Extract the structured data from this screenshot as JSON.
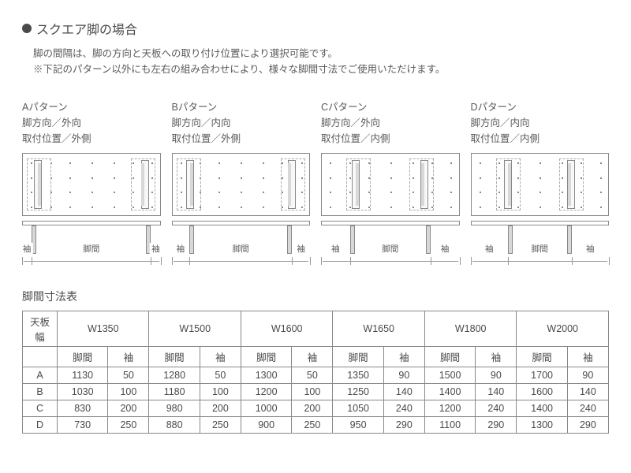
{
  "title": "スクエア脚の場合",
  "description_line1": "脚の間隔は、脚の方向と天板への取り付け位置により選択可能です。",
  "description_line2": "※下記のパターン以外にも左右の組み合わせにより、様々な脚間寸法でご使用いただけます。",
  "patterns": [
    {
      "name": "Aパターン",
      "direction": "脚方向／外向",
      "position": "取付位置／外側",
      "diagram": {
        "leg_offset_pct": 8,
        "bracket_outer": true,
        "leg_view_offset_pct": 7,
        "sleeve_range": [
          0,
          7
        ],
        "span_range": [
          7,
          93
        ]
      }
    },
    {
      "name": "Bパターン",
      "direction": "脚方向／内向",
      "position": "取付位置／外側",
      "diagram": {
        "leg_offset_pct": 10,
        "bracket_outer": true,
        "leg_view_offset_pct": 13,
        "sleeve_range": [
          0,
          13
        ],
        "span_range": [
          13,
          87
        ]
      }
    },
    {
      "name": "Cパターン",
      "direction": "脚方向／外向",
      "position": "取付位置／内側",
      "diagram": {
        "leg_offset_pct": 22,
        "bracket_outer": false,
        "leg_view_offset_pct": 21,
        "sleeve_range": [
          0,
          21
        ],
        "span_range": [
          21,
          79
        ]
      }
    },
    {
      "name": "Dパターン",
      "direction": "脚方向／内向",
      "position": "取付位置／内側",
      "diagram": {
        "leg_offset_pct": 24,
        "bracket_outer": false,
        "leg_view_offset_pct": 27,
        "sleeve_range": [
          0,
          27
        ],
        "span_range": [
          27,
          73
        ]
      }
    }
  ],
  "labels": {
    "span": "脚間",
    "sleeve": "袖",
    "row_head": "天板幅"
  },
  "table_title": "脚間寸法表",
  "widths": [
    "W1350",
    "W1500",
    "W1600",
    "W1650",
    "W1800",
    "W2000"
  ],
  "subcols": [
    "脚間",
    "袖"
  ],
  "rows": [
    {
      "label": "A",
      "vals": [
        [
          1130,
          50
        ],
        [
          1280,
          50
        ],
        [
          1300,
          50
        ],
        [
          1350,
          90
        ],
        [
          1500,
          90
        ],
        [
          1700,
          90
        ]
      ]
    },
    {
      "label": "B",
      "vals": [
        [
          1030,
          100
        ],
        [
          1180,
          100
        ],
        [
          1200,
          100
        ],
        [
          1250,
          140
        ],
        [
          1400,
          140
        ],
        [
          1600,
          140
        ]
      ]
    },
    {
      "label": "C",
      "vals": [
        [
          830,
          200
        ],
        [
          980,
          200
        ],
        [
          1000,
          200
        ],
        [
          1050,
          240
        ],
        [
          1200,
          240
        ],
        [
          1400,
          240
        ]
      ]
    },
    {
      "label": "D",
      "vals": [
        [
          730,
          250
        ],
        [
          880,
          250
        ],
        [
          900,
          250
        ],
        [
          950,
          290
        ],
        [
          1100,
          290
        ],
        [
          1300,
          290
        ]
      ]
    }
  ],
  "colors": {
    "text": "#4a4a4a",
    "border": "#888888",
    "fill": "#d8d8d8",
    "bg": "#ffffff"
  }
}
